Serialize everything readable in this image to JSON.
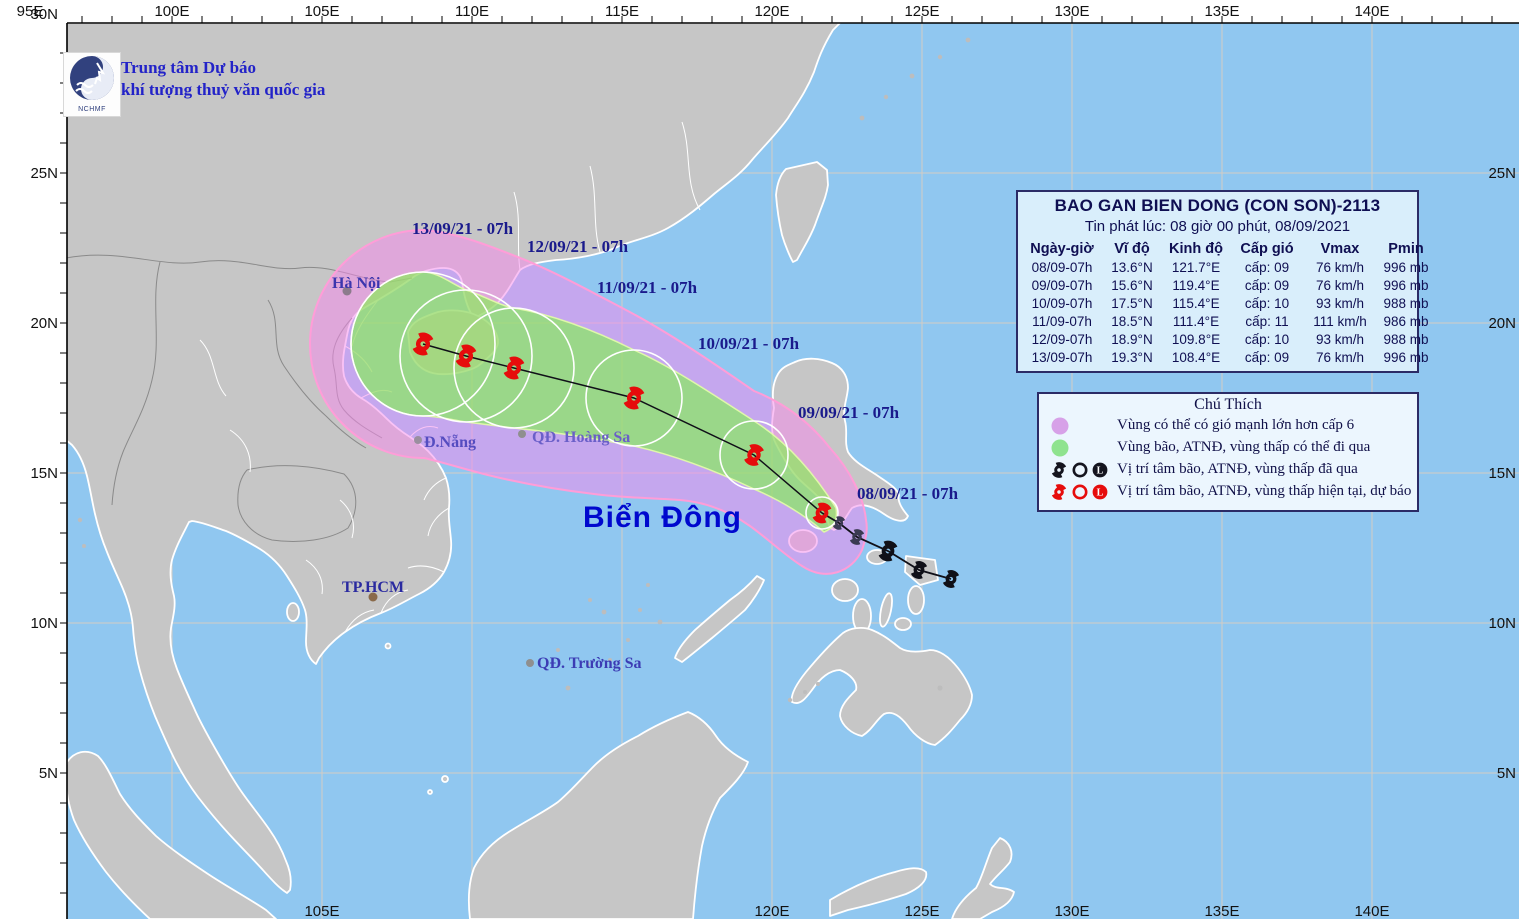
{
  "agency": {
    "line1": "Trung tâm Dự báo",
    "line2": "khí tượng thuỷ văn quốc gia",
    "logo_text": "NCHMF"
  },
  "info_table": {
    "title": "BAO GAN BIEN DONG (CON SON)-2113",
    "issued": "Tin phát lúc: 08 giờ 00 phút, 08/09/2021",
    "columns": [
      "Ngày-giờ",
      "Vĩ độ",
      "Kinh độ",
      "Cấp gió",
      "Vmax",
      "Pmin"
    ],
    "rows": [
      {
        "d": "08/09-07h",
        "lat": "13.6°N",
        "lon": "121.7°E",
        "w": "cấp: 09",
        "v": "76 km/h",
        "p": "996 mb"
      },
      {
        "d": "09/09-07h",
        "lat": "15.6°N",
        "lon": "119.4°E",
        "w": "cấp: 09",
        "v": "76 km/h",
        "p": "996 mb"
      },
      {
        "d": "10/09-07h",
        "lat": "17.5°N",
        "lon": "115.4°E",
        "w": "cấp: 10",
        "v": "93 km/h",
        "p": "988 mb"
      },
      {
        "d": "11/09-07h",
        "lat": "18.5°N",
        "lon": "111.4°E",
        "w": "cấp: 11",
        "v": "111 km/h",
        "p": "986 mb"
      },
      {
        "d": "12/09-07h",
        "lat": "18.9°N",
        "lon": "109.8°E",
        "w": "cấp: 10",
        "v": "93 km/h",
        "p": "988 mb"
      },
      {
        "d": "13/09-07h",
        "lat": "19.3°N",
        "lon": "108.4°E",
        "w": "cấp: 09",
        "v": "76 km/h",
        "p": "996 mb"
      }
    ]
  },
  "legend": {
    "title": "Chú Thích",
    "item1": "Vùng có thể có gió mạnh lớn hơn cấp 6",
    "item2": "Vùng bão, ATNĐ, vùng thấp có thể đi qua",
    "item3": "Vị trí tâm bão, ATNĐ, vùng thấp đã qua",
    "item4": "Vị trí tâm bão, ATNĐ, vùng thấp hiện tại, dự báo"
  },
  "map": {
    "sea_label": "Biển Đông",
    "cities": {
      "hanoi": "Hà Nội",
      "danang": "Đ.Nẵng",
      "hoangsa": "QĐ. Hoàng Sa",
      "tphcm": "TP.HCM",
      "truongsa": "QĐ. Trường Sa"
    },
    "track_labels": [
      "13/09/21 - 07h",
      "12/09/21 - 07h",
      "11/09/21 - 07h",
      "10/09/21 - 07h",
      "09/09/21 - 07h",
      "08/09/21 - 07h"
    ],
    "axis": {
      "top": [
        "95E",
        "100E",
        "105E",
        "110E",
        "115E",
        "120E",
        "125E",
        "130E",
        "135E",
        "140E"
      ],
      "bottom": [
        "105E",
        "120E",
        "125E",
        "130E",
        "135E",
        "140E"
      ],
      "left": [
        "30N",
        "25N",
        "20N",
        "15N",
        "10N",
        "5N"
      ],
      "right": [
        "25N",
        "20N",
        "15N",
        "10N",
        "5N"
      ]
    }
  },
  "colors": {
    "sea": "#90c7f0",
    "land": "#c6c6c6",
    "danger_zone": "#d7a1e8",
    "pass_zone": "#8fe38f",
    "cone_border": "#ff9dd8",
    "storm_red": "#e60c0c",
    "storm_black": "#14141e",
    "label_blue": "#1a1a8c",
    "sea_label_blue": "#0008ce"
  }
}
